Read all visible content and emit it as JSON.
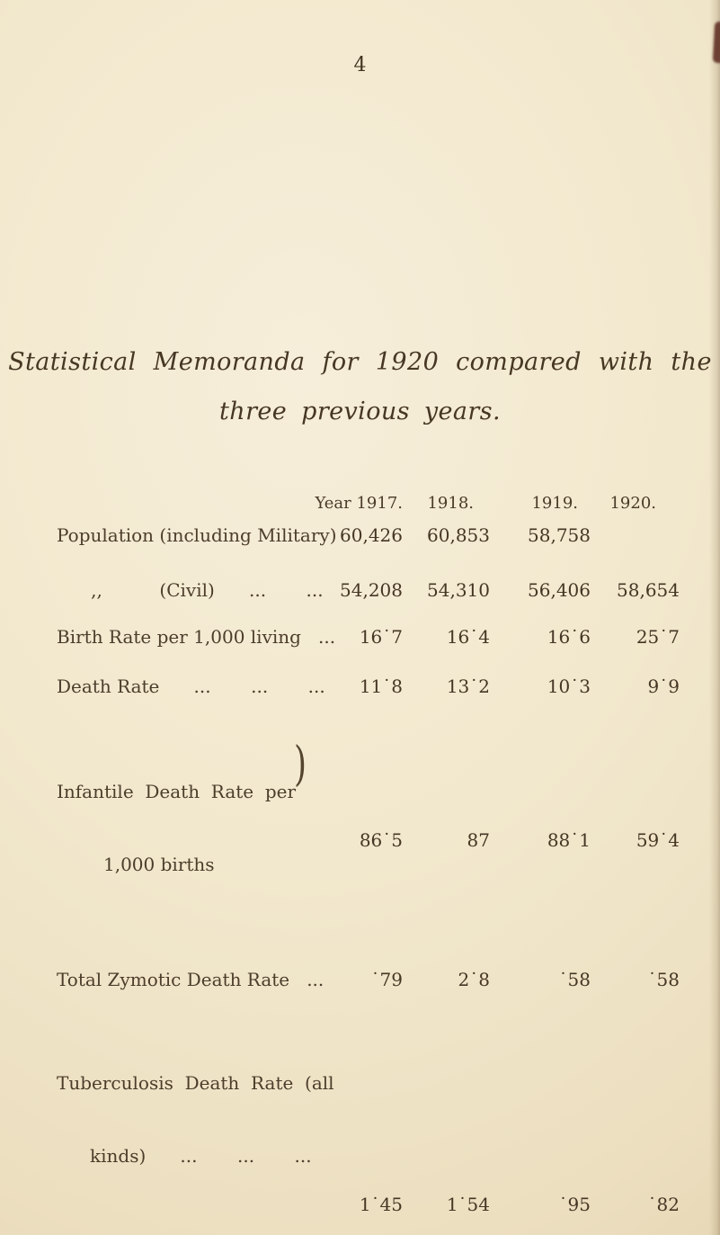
{
  "page": {
    "number": "4",
    "title_line1": "Statistical Memoranda for 1920 compared with the",
    "title_line2": "three previous years."
  },
  "table": {
    "headers": [
      "Year 1917.",
      "1918.",
      "1919.",
      "1920."
    ],
    "rows": [
      {
        "label": "Population (including Military)",
        "values": [
          "60,426",
          "60,853",
          "58,758",
          ""
        ]
      },
      {
        "label": "      ,,          (Civil)      ...       ...",
        "values": [
          "54,208",
          "54,310",
          "56,406",
          "58,654"
        ]
      },
      {
        "label": "Birth Rate per 1,000 living   ...",
        "values": [
          "16˙7",
          "16˙4",
          "16˙6",
          "25˙7"
        ]
      },
      {
        "label": "Death Rate      ...       ...       ...",
        "values": [
          "11˙8",
          "13˙2",
          "10˙3",
          "9˙9"
        ]
      },
      {
        "label_line1": "Infantile  Death  Rate  per",
        "label_line2": "1,000 births",
        "brace": ")",
        "values": [
          "86˙5",
          "87",
          "88˙1",
          "59˙4"
        ]
      },
      {
        "label": "Total Zymotic Death Rate   ...",
        "values": [
          "˙79",
          "2˙8",
          "˙58",
          "˙58"
        ]
      },
      {
        "label_line1": "Tuberculosis  Death  Rate  (all",
        "label_line2": "kinds)      ...       ...       ...",
        "values": [
          "1˙45",
          "1˙54",
          "˙95",
          "˙82"
        ]
      }
    ]
  }
}
